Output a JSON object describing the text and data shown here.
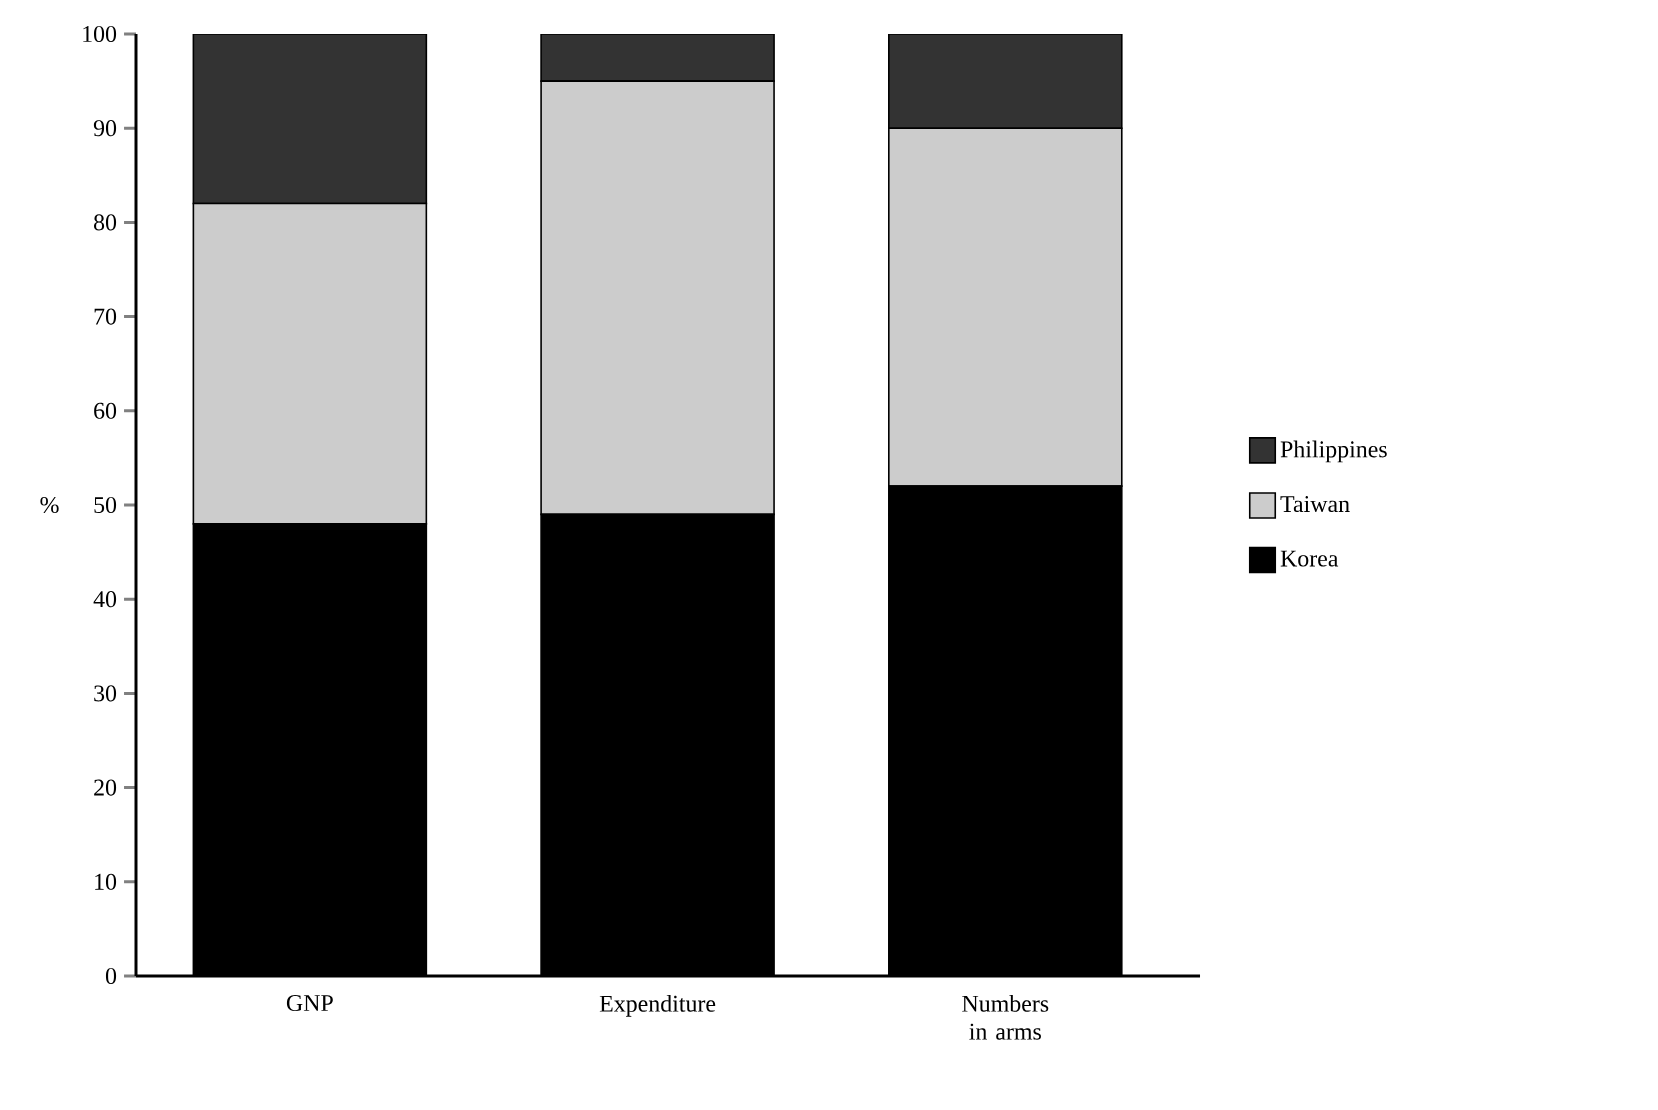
{
  "chart_data": {
    "type": "bar",
    "stacked": true,
    "ylabel": "%",
    "categories": [
      "GNP",
      "Expenditure",
      "Numbers in arms"
    ],
    "series": [
      {
        "name": "Korea",
        "color": "#000000",
        "values": [
          48,
          49,
          52
        ]
      },
      {
        "name": "Taiwan",
        "color": "#cccccc",
        "values": [
          34,
          46,
          38
        ]
      },
      {
        "name": "Philippines",
        "color": "#333333",
        "values": [
          18,
          5,
          10
        ]
      }
    ],
    "ylim": [
      0,
      100
    ],
    "yticks": [
      0,
      10,
      20,
      30,
      40,
      50,
      60,
      70,
      80,
      90,
      100
    ],
    "legend": "right",
    "grid": false
  }
}
